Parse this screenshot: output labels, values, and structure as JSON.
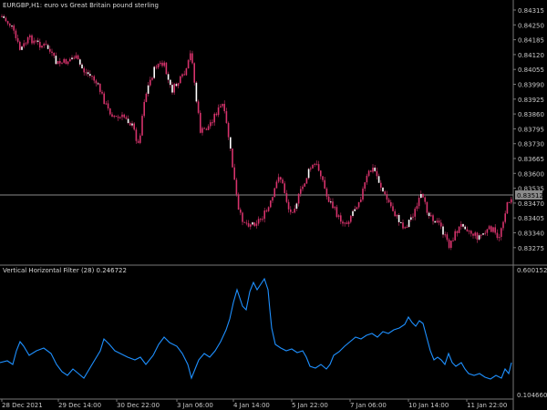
{
  "main_chart": {
    "title": "EURGBP,H1:  euro vs Great Britain pound sterling",
    "current_price": "0.83512",
    "y_ticks": [
      "0.84315",
      "0.84250",
      "0.84185",
      "0.84120",
      "0.84055",
      "0.83990",
      "0.83925",
      "0.83860",
      "0.83795",
      "0.83730",
      "0.83665",
      "0.83600",
      "0.83535",
      "0.83470",
      "0.83405",
      "0.83340",
      "0.83275"
    ]
  },
  "indicator": {
    "title": "Vertical Horizontal Filter (28) 0.246722",
    "y_ticks": [
      "0.600152",
      "0.104660"
    ]
  },
  "x_axis": {
    "labels": [
      "28 Dec 2021",
      "29 Dec 14:00",
      "30 Dec 22:00",
      "3 Jan 06:00",
      "4 Jan 14:00",
      "5 Jan 22:00",
      "7 Jan 06:00",
      "10 Jan 14:00",
      "11 Jan 22:00"
    ]
  },
  "colors": {
    "background": "#000000",
    "candle": "#d6336c",
    "candle_light": "#ffffff",
    "vhf_line": "#1e90ff",
    "grid_line": "#8a8a8a",
    "text": "#c8c8c8",
    "price_label_bg": "#8a8a8a"
  }
}
